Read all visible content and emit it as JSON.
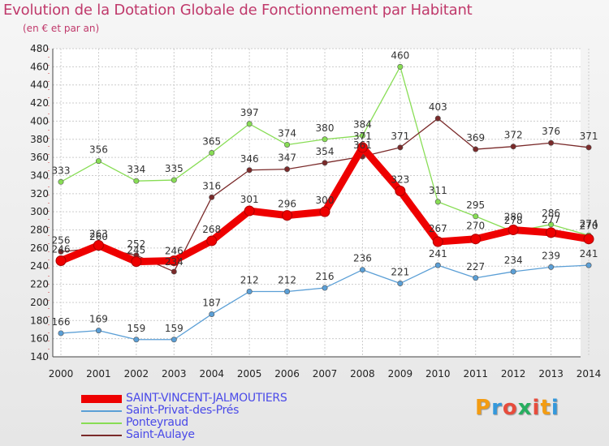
{
  "title": "Evolution de la Dotation Globale de Fonctionnement par Habitant",
  "subtitle": "(en € et par an)",
  "logo": {
    "text": "Proxiti",
    "colors": [
      "#f39c12",
      "#3498db",
      "#e74c3c",
      "#27ae60",
      "#e74c3c",
      "#f39c12",
      "#3498db"
    ]
  },
  "chart_data": {
    "type": "line",
    "x": [
      "2000",
      "2001",
      "2002",
      "2003",
      "2004",
      "2005",
      "2006",
      "2007",
      "2008",
      "2009",
      "2010",
      "2011",
      "2012",
      "2013",
      "2014"
    ],
    "ylim": [
      140,
      480
    ],
    "yticks": [
      140,
      160,
      180,
      200,
      220,
      240,
      260,
      280,
      300,
      320,
      340,
      360,
      380,
      400,
      420,
      440,
      460,
      480
    ],
    "grid": true,
    "legend_position": "bottom-left",
    "series": [
      {
        "name": "SAINT-VINCENT-JALMOUTIERS",
        "color": "#ee0000",
        "values": [
          246,
          263,
          245,
          246,
          268,
          301,
          296,
          300,
          371,
          323,
          267,
          270,
          280,
          277,
          270
        ]
      },
      {
        "name": "Saint-Privat-des-Prés",
        "color": "#5b9fd6",
        "values": [
          166,
          169,
          159,
          159,
          187,
          212,
          212,
          216,
          236,
          221,
          241,
          227,
          234,
          239,
          241
        ]
      },
      {
        "name": "Ponteyraud",
        "color": "#88dd55",
        "values": [
          333,
          356,
          334,
          335,
          365,
          397,
          374,
          380,
          384,
          460,
          311,
          295,
          278,
          286,
          274
        ]
      },
      {
        "name": "Saint-Aulaye",
        "color": "#7a2a2a",
        "values": [
          256,
          260,
          252,
          234,
          316,
          346,
          347,
          354,
          361,
          371,
          403,
          369,
          372,
          376,
          371
        ]
      }
    ]
  }
}
